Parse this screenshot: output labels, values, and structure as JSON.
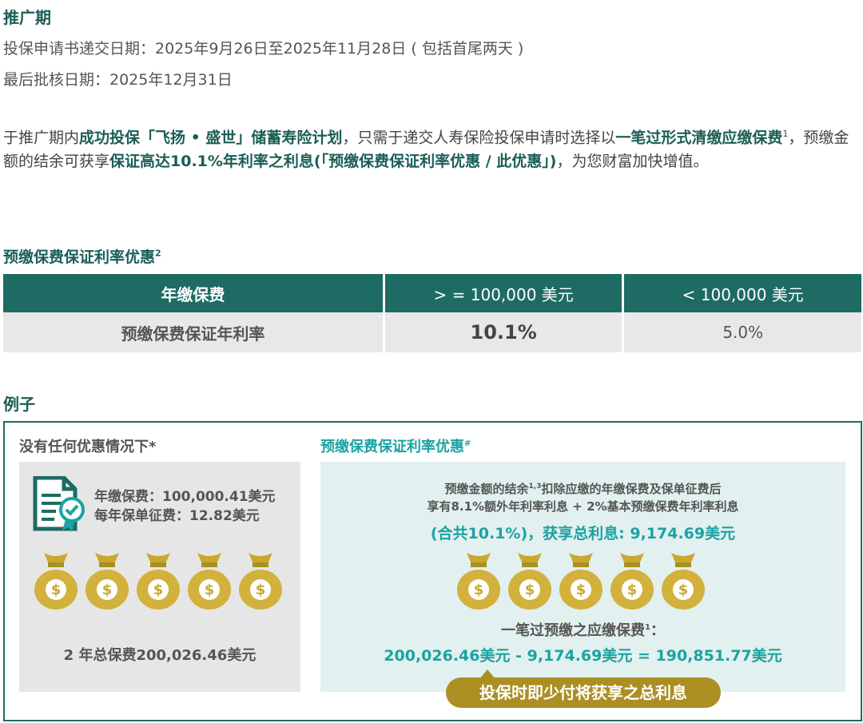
{
  "promo": {
    "heading": "推广期",
    "submit_period": "投保申请书递交日期：2025年9月26日至2025年11月28日 ( 包括首尾两天 )",
    "approval_date": "最后批核日期：2025年12月31日"
  },
  "intro": {
    "p1": "于推广期内",
    "b1": "成功投保「飞扬 • 盛世」储蓄寿险计划",
    "p2": "，只需于递交人寿保险投保申请时选择以",
    "b2": "一笔过形式清缴应缴保费",
    "sup1": "1",
    "p3": "，预缴金额的结余可获享",
    "b3": "保证高达10.1%年利率之利息(「预缴保费保证利率优惠 / 此优惠」)",
    "p4": "，为您财富加快增值。"
  },
  "rate_section": {
    "title": "预缴保费保证利率优惠",
    "title_sup": "2",
    "headers": [
      "年缴保费",
      "> = 100,000 美元",
      "< 100,000 美元"
    ],
    "row": [
      "预缴保费保证年利率",
      "10.1%",
      "5.0%"
    ]
  },
  "example": {
    "heading": "例子",
    "left": {
      "title": "没有任何优惠情况下*",
      "line1": "年缴保费：100,000.41美元",
      "line2": "每年保单征费：12.82美元",
      "total": "2 年总保费200,026.46美元"
    },
    "right": {
      "title": "预缴保费保证利率优惠",
      "title_sup": "#",
      "line1a": "预缴金额的结余",
      "line1_sup": "1,3",
      "line1b": "扣除应缴的年缴保费及保单征费后",
      "line2": "享有8.1%额外年利率利息 + 2%基本预缴保费年利率利息",
      "line3": "(合共10.1%)，获享总利息: 9,174.69美元",
      "calc_title": "一笔过预缴之应缴保费",
      "calc_sup": "1",
      "calc_colon": "：",
      "calc_formula": "200,026.46美元 - 9,174.69美元 = 190,851.77美元",
      "pill": "投保时即少付将获享之总利息"
    },
    "bag_symbol": "$"
  },
  "colors": {
    "brand_green": "#1b5e55",
    "table_header": "#1e6b63",
    "teal_text": "#1aa3a3",
    "gold": "#c9a82e",
    "pill": "#ab8f22"
  }
}
